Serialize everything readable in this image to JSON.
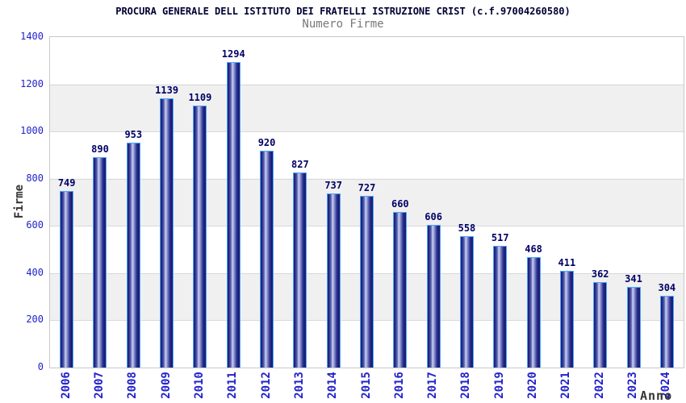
{
  "header": {
    "title": "PROCURA GENERALE DELL ISTITUTO DEI FRATELLI ISTRUZIONE CRIST (c.f.97004260580)",
    "subtitle": "Numero Firme"
  },
  "chart_data": {
    "type": "bar",
    "title": "PROCURA GENERALE DELL ISTITUTO DEI FRATELLI ISTRUZIONE CRIST (c.f.97004260580)",
    "subtitle": "Numero Firme",
    "xlabel": "Anno",
    "ylabel": "Firme",
    "categories": [
      "2006",
      "2007",
      "2008",
      "2009",
      "2010",
      "2011",
      "2012",
      "2013",
      "2014",
      "2015",
      "2016",
      "2017",
      "2018",
      "2019",
      "2020",
      "2021",
      "2022",
      "2023",
      "2024"
    ],
    "values": [
      749,
      890,
      953,
      1139,
      1109,
      1294,
      920,
      827,
      737,
      727,
      660,
      606,
      558,
      517,
      468,
      411,
      362,
      341,
      304
    ],
    "bar_value_labels_shown": true,
    "ylim": [
      0,
      1400
    ],
    "yticks": [
      0,
      200,
      400,
      600,
      800,
      1000,
      1200,
      1400
    ],
    "grid": "horizontal alternating bands every 200 units, gridline at each tick",
    "legend": "none",
    "x_tick_rotation_degrees": -90
  },
  "colors": {
    "title_text": "#000033",
    "subtitle_text": "#777777",
    "tick_label_blue": "#2222cc",
    "bar_value_label": "#000066",
    "axis_title_text": "#333333",
    "band_gray": "#f0f0f0",
    "plot_border": "#c8c8c8",
    "gridline": "#d9d9d9",
    "bar_border_lightblue": "#4da6ff",
    "bar_gradient_dark": "#181a6e",
    "bar_gradient_highlight": "#cdd2f4",
    "background": "#ffffff"
  }
}
